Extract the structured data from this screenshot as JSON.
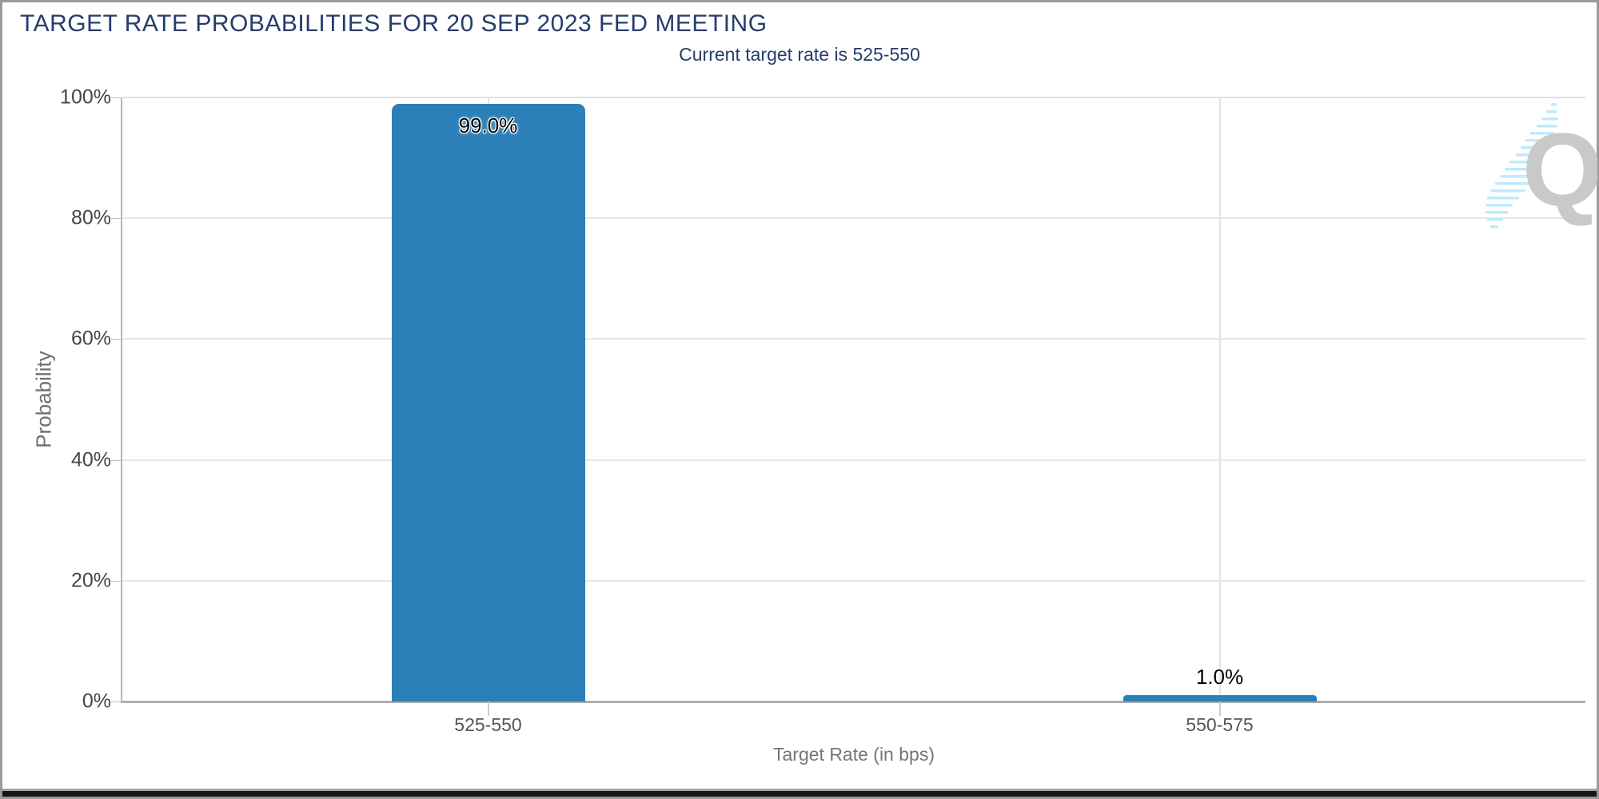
{
  "header": {
    "title": "TARGET RATE PROBABILITIES FOR 20 SEP 2023 FED MEETING",
    "subtitle": "Current target rate is 525-550"
  },
  "chart_data": {
    "type": "bar",
    "title": "TARGET RATE PROBABILITIES FOR 20 SEP 2023 FED MEETING",
    "subtitle": "Current target rate is 525-550",
    "categories": [
      "525-550",
      "550-575"
    ],
    "values": [
      99.0,
      1.0
    ],
    "value_labels": [
      "99.0%",
      "1.0%"
    ],
    "xlabel": "Target Rate (in bps)",
    "ylabel": "Probability",
    "ylim": [
      0,
      100
    ],
    "yticks": {
      "values": [
        0,
        20,
        40,
        60,
        80,
        100
      ],
      "labels": [
        "0%",
        "20%",
        "40%",
        "60%",
        "80%",
        "100%"
      ]
    },
    "grid": "horizontal gridlines at y ticks, vertical gridline at each category center",
    "legend": "none",
    "bar_color": "#2b80b9"
  },
  "colors": {
    "title_navy": "#263c6d",
    "bar_blue": "#2b80b9",
    "grid_light": "#e6e6e6",
    "axis_gray": "#b3b3b3",
    "ytick_label": "#454545",
    "category_label": "#555555",
    "axis_title_gray": "#757575",
    "logo_gray": "#c9c9c9",
    "logo_cyan": "#bfeafc",
    "border_gray": "#9a9a9a",
    "bottom_bar_black": "#161616"
  },
  "logo": {
    "icon": "quikstrike-q-logo",
    "letter": "Q"
  }
}
